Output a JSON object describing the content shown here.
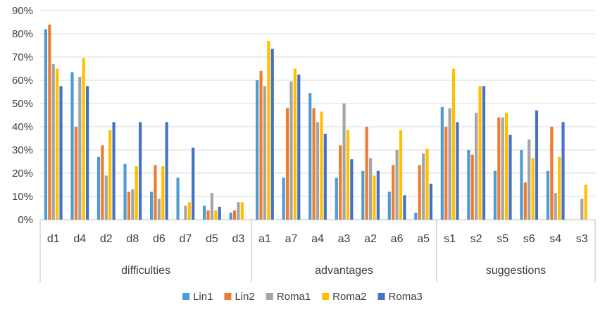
{
  "chart_data": {
    "type": "bar",
    "title": "",
    "xlabel": "",
    "ylabel": "",
    "ylim": [
      0,
      90
    ],
    "y_ticks": [
      "0%",
      "10%",
      "20%",
      "30%",
      "40%",
      "50%",
      "60%",
      "70%",
      "80%",
      "90%"
    ],
    "grid": true,
    "legend_position": "bottom",
    "groups": [
      {
        "label": "difficulties",
        "categories": [
          "d1",
          "d4",
          "d2",
          "d8",
          "d6",
          "d7",
          "d5",
          "d3"
        ]
      },
      {
        "label": "advantages",
        "categories": [
          "a1",
          "a7",
          "a4",
          "a3",
          "a2",
          "a6",
          "a5"
        ]
      },
      {
        "label": "suggestions",
        "categories": [
          "s1",
          "s2",
          "s5",
          "s6",
          "s4",
          "s3"
        ]
      }
    ],
    "categories": [
      "d1",
      "d4",
      "d2",
      "d8",
      "d6",
      "d7",
      "d5",
      "d3",
      "a1",
      "a7",
      "a4",
      "a3",
      "a2",
      "a6",
      "a5",
      "s1",
      "s2",
      "s5",
      "s6",
      "s4",
      "s3"
    ],
    "series": [
      {
        "name": "Lin1",
        "color": "#4f9bd5",
        "values": [
          82,
          63.5,
          27,
          24,
          12,
          18,
          6,
          3,
          60,
          18,
          54.5,
          18,
          21,
          12,
          3,
          48.5,
          30,
          21,
          30,
          21,
          0
        ]
      },
      {
        "name": "Lin2",
        "color": "#ed7d31",
        "values": [
          84,
          40,
          32,
          12,
          23.5,
          0,
          4,
          4,
          64,
          48,
          48,
          32,
          40,
          23.5,
          23.5,
          40,
          28,
          44,
          16,
          40,
          0
        ]
      },
      {
        "name": "Roma1",
        "color": "#a5a5a5",
        "values": [
          67,
          61.5,
          19,
          13,
          9,
          6,
          11.5,
          7.5,
          57.5,
          59.5,
          42,
          50,
          26.5,
          30,
          28.5,
          48,
          46,
          44,
          34.5,
          11.5,
          9
        ]
      },
      {
        "name": "Roma2",
        "color": "#ffc000",
        "values": [
          65,
          69.5,
          38.5,
          23,
          23,
          7.5,
          4,
          7.5,
          77,
          65,
          46.5,
          38.5,
          19,
          38.5,
          30.5,
          65,
          57.5,
          46,
          26.5,
          27,
          15
        ]
      },
      {
        "name": "Roma3",
        "color": "#4472c4",
        "values": [
          57.5,
          57.5,
          42,
          42,
          42,
          31,
          5.5,
          0,
          73.5,
          62.5,
          37,
          26,
          21,
          10.5,
          15.5,
          42,
          57.5,
          36.5,
          47,
          42,
          0
        ]
      }
    ]
  }
}
